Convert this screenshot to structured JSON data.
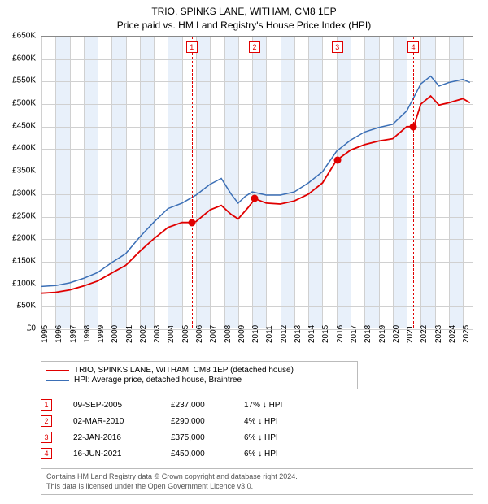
{
  "header": {
    "line1": "TRIO, SPINKS LANE, WITHAM, CM8 1EP",
    "line2": "Price paid vs. HM Land Registry's House Price Index (HPI)"
  },
  "chart": {
    "type": "line",
    "background_color": "#ffffff",
    "grid_color": "#d0d0d0",
    "border_color": "#888888",
    "band_color": "#e8f0fa",
    "x_min": 1995,
    "x_max": 2025.8,
    "x_ticks": [
      1995,
      1996,
      1997,
      1998,
      1999,
      2000,
      2001,
      2002,
      2003,
      2004,
      2005,
      2006,
      2007,
      2008,
      2009,
      2010,
      2011,
      2012,
      2013,
      2014,
      2015,
      2016,
      2017,
      2018,
      2019,
      2020,
      2021,
      2022,
      2023,
      2024,
      2025
    ],
    "y_min": 0,
    "y_max": 650000,
    "y_ticks": [
      {
        "v": 0,
        "label": "£0"
      },
      {
        "v": 50000,
        "label": "£50K"
      },
      {
        "v": 100000,
        "label": "£100K"
      },
      {
        "v": 150000,
        "label": "£150K"
      },
      {
        "v": 200000,
        "label": "£200K"
      },
      {
        "v": 250000,
        "label": "£250K"
      },
      {
        "v": 300000,
        "label": "£300K"
      },
      {
        "v": 350000,
        "label": "£350K"
      },
      {
        "v": 400000,
        "label": "£400K"
      },
      {
        "v": 450000,
        "label": "£450K"
      },
      {
        "v": 500000,
        "label": "£500K"
      },
      {
        "v": 550000,
        "label": "£550K"
      },
      {
        "v": 600000,
        "label": "£600K"
      },
      {
        "v": 650000,
        "label": "£650K"
      }
    ],
    "alt_bands_start": 1996,
    "series": [
      {
        "id": "hpi",
        "color": "#3b6fb6",
        "width": 1.5,
        "label": "HPI: Average price, detached house, Braintree",
        "points": [
          [
            1995,
            95000
          ],
          [
            1996,
            97000
          ],
          [
            1997,
            103000
          ],
          [
            1998,
            113000
          ],
          [
            1999,
            126000
          ],
          [
            2000,
            148000
          ],
          [
            2001,
            168000
          ],
          [
            2002,
            205000
          ],
          [
            2003,
            238000
          ],
          [
            2004,
            268000
          ],
          [
            2005,
            280000
          ],
          [
            2006,
            298000
          ],
          [
            2007,
            322000
          ],
          [
            2007.8,
            335000
          ],
          [
            2008.5,
            300000
          ],
          [
            2009,
            280000
          ],
          [
            2009.5,
            295000
          ],
          [
            2010,
            305000
          ],
          [
            2011,
            298000
          ],
          [
            2012,
            298000
          ],
          [
            2013,
            305000
          ],
          [
            2014,
            325000
          ],
          [
            2015,
            350000
          ],
          [
            2016,
            395000
          ],
          [
            2017,
            420000
          ],
          [
            2018,
            438000
          ],
          [
            2019,
            448000
          ],
          [
            2020,
            455000
          ],
          [
            2021,
            485000
          ],
          [
            2022,
            545000
          ],
          [
            2022.7,
            562000
          ],
          [
            2023.3,
            540000
          ],
          [
            2024,
            548000
          ],
          [
            2025,
            555000
          ],
          [
            2025.5,
            548000
          ]
        ]
      },
      {
        "id": "property",
        "color": "#e00000",
        "width": 1.8,
        "label": "TRIO, SPINKS LANE, WITHAM, CM8 1EP (detached house)",
        "points": [
          [
            1995,
            80000
          ],
          [
            1996,
            82000
          ],
          [
            1997,
            87000
          ],
          [
            1998,
            96000
          ],
          [
            1999,
            107000
          ],
          [
            2000,
            125000
          ],
          [
            2001,
            142000
          ],
          [
            2002,
            173000
          ],
          [
            2003,
            201000
          ],
          [
            2004,
            226000
          ],
          [
            2005,
            237000
          ],
          [
            2005.7,
            237000
          ],
          [
            2006,
            239000
          ],
          [
            2007,
            265000
          ],
          [
            2007.8,
            275000
          ],
          [
            2008.5,
            255000
          ],
          [
            2009,
            245000
          ],
          [
            2009.7,
            270000
          ],
          [
            2010.2,
            290000
          ],
          [
            2011,
            280000
          ],
          [
            2012,
            278000
          ],
          [
            2013,
            285000
          ],
          [
            2014,
            300000
          ],
          [
            2015,
            325000
          ],
          [
            2016,
            375000
          ],
          [
            2017,
            398000
          ],
          [
            2018,
            410000
          ],
          [
            2019,
            418000
          ],
          [
            2020,
            423000
          ],
          [
            2021,
            450000
          ],
          [
            2021.5,
            450000
          ],
          [
            2022,
            500000
          ],
          [
            2022.7,
            518000
          ],
          [
            2023.3,
            498000
          ],
          [
            2024,
            503000
          ],
          [
            2025,
            512000
          ],
          [
            2025.5,
            503000
          ]
        ]
      }
    ],
    "markers": [
      {
        "x": 2005.7,
        "y": 237000
      },
      {
        "x": 2010.17,
        "y": 290000
      },
      {
        "x": 2016.06,
        "y": 375000
      },
      {
        "x": 2021.46,
        "y": 450000
      }
    ],
    "events": [
      {
        "n": "1",
        "x": 2005.7
      },
      {
        "n": "2",
        "x": 2010.17
      },
      {
        "n": "3",
        "x": 2016.06
      },
      {
        "n": "4",
        "x": 2021.46
      }
    ],
    "event_line_color": "#e00000",
    "event_box_border": "#e00000",
    "marker_color": "#e00000"
  },
  "legend": {
    "rows": [
      {
        "color": "#e00000",
        "label": "TRIO, SPINKS LANE, WITHAM, CM8 1EP (detached house)"
      },
      {
        "color": "#3b6fb6",
        "label": "HPI: Average price, detached house, Braintree"
      }
    ]
  },
  "transactions": [
    {
      "n": "1",
      "date": "09-SEP-2005",
      "price": "£237,000",
      "diff": "17% ↓ HPI"
    },
    {
      "n": "2",
      "date": "02-MAR-2010",
      "price": "£290,000",
      "diff": "4% ↓ HPI"
    },
    {
      "n": "3",
      "date": "22-JAN-2016",
      "price": "£375,000",
      "diff": "6% ↓ HPI"
    },
    {
      "n": "4",
      "date": "16-JUN-2021",
      "price": "£450,000",
      "diff": "6% ↓ HPI"
    }
  ],
  "footer": {
    "line1": "Contains HM Land Registry data © Crown copyright and database right 2024.",
    "line2": "This data is licensed under the Open Government Licence v3.0."
  }
}
